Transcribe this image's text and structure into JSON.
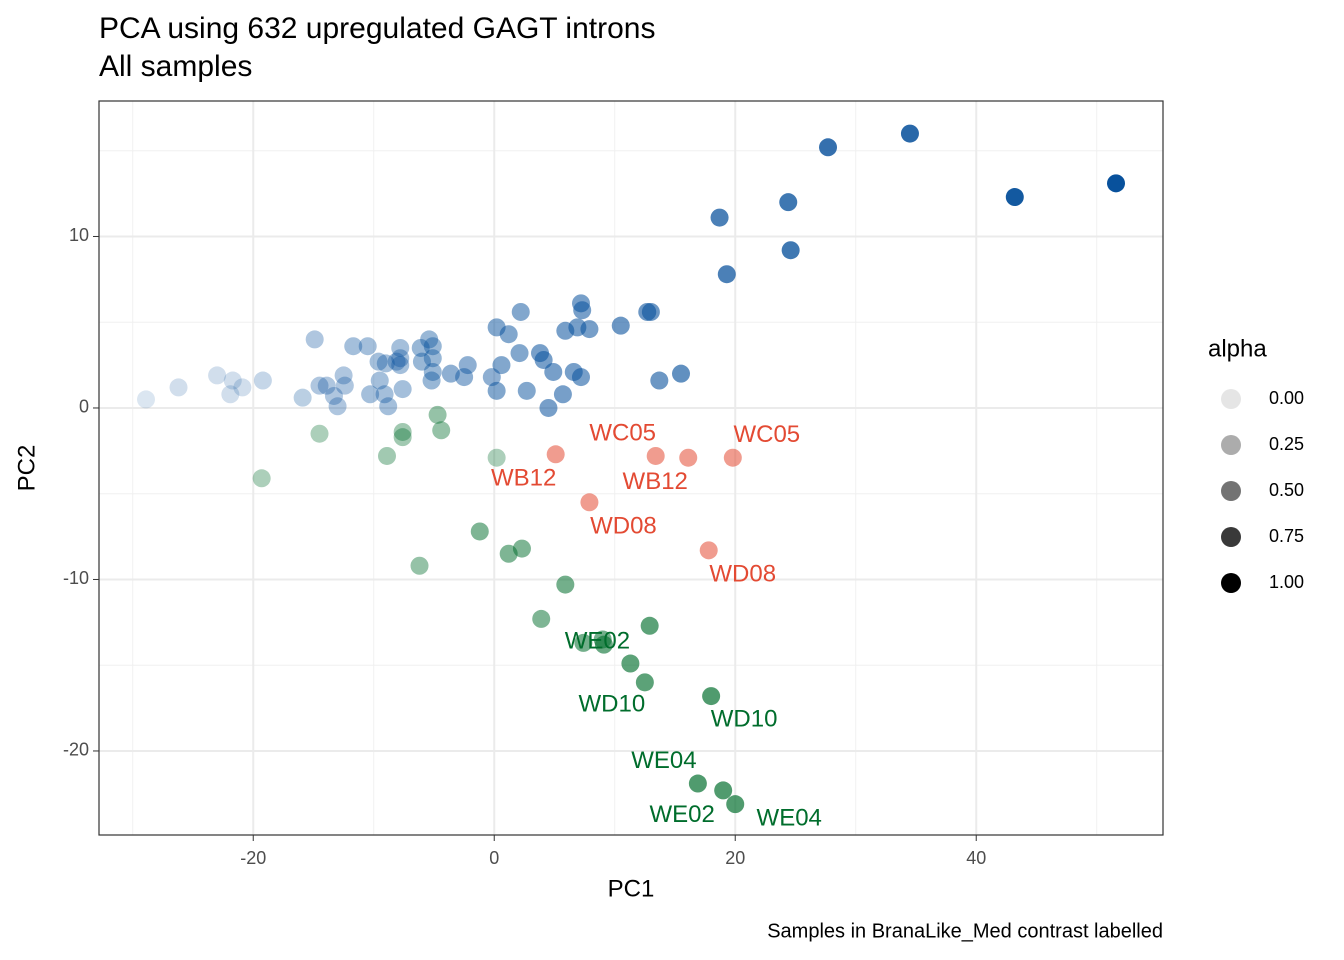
{
  "chart_data": {
    "type": "scatter",
    "title": "PCA using 632 upregulated GAGT introns",
    "subtitle": "All samples",
    "x_label": "PC1",
    "y_label": "PC2",
    "caption": "Samples in BranaLike_Med contrast labelled",
    "xlim": [
      -32.8,
      55.5
    ],
    "ylim": [
      -24.9,
      17.9
    ],
    "xticks": [
      -20,
      0,
      20,
      40
    ],
    "yticks": [
      -20,
      -10,
      0,
      10
    ],
    "x_minor_breaks": [
      -30,
      -10,
      10,
      30,
      50
    ],
    "y_minor_breaks": [
      -15,
      -5,
      5,
      15
    ],
    "grid": true,
    "legend": {
      "title": "alpha",
      "position": "right",
      "color": "#000000",
      "values": [
        {
          "value": 0,
          "label": "0.00"
        },
        {
          "value": 0.25,
          "label": "0.25"
        },
        {
          "value": 0.5,
          "label": "0.50"
        },
        {
          "value": 0.75,
          "label": "0.75"
        },
        {
          "value": 1,
          "label": "1.00"
        }
      ]
    },
    "series": [
      {
        "color": "#08519c",
        "x": [
          -28.9,
          -26.2,
          -23.0,
          -21.9,
          -21.7,
          -20.9,
          -19.2,
          -15.9,
          -14.9,
          -14.5,
          -13.9,
          -13.3,
          -13.0,
          -12.5,
          -12.4,
          -11.7,
          -10.5,
          -10.3,
          -9.6,
          -9.5,
          -9.0,
          -8.8,
          -9.1,
          -8.1,
          -7.8,
          -7.8,
          -7.8,
          -7.6,
          -6.1,
          -6.0,
          -5.4,
          -5.1,
          -5.1,
          -5.1,
          -5.2,
          -3.6,
          -2.5,
          -2.2,
          -0.2,
          0.2,
          0.2,
          0.6,
          1.2,
          2.1,
          2.2,
          2.7,
          3.8,
          4.1,
          4.9,
          4.5,
          5.7,
          5.9,
          6.6,
          6.9,
          7.2,
          7.3,
          7.2,
          7.9,
          10.5,
          12.7,
          13.0,
          13.7,
          15.5,
          18.7,
          19.3,
          24.4,
          24.6,
          27.7,
          34.5,
          43.2,
          51.6
        ],
        "y": [
          0.5,
          1.2,
          1.9,
          0.8,
          1.6,
          1.2,
          1.6,
          0.6,
          4.0,
          1.3,
          1.3,
          0.7,
          0.1,
          1.9,
          1.3,
          3.6,
          3.6,
          0.8,
          2.7,
          1.6,
          2.6,
          0.1,
          0.8,
          2.7,
          3.5,
          2.9,
          2.5,
          1.1,
          3.5,
          2.7,
          4.0,
          2.1,
          3.6,
          2.9,
          1.6,
          2.0,
          1.8,
          2.5,
          1.8,
          4.7,
          1.0,
          2.5,
          4.3,
          3.2,
          5.6,
          1.0,
          3.2,
          2.8,
          2.1,
          0.0,
          0.8,
          4.5,
          2.1,
          4.7,
          6.1,
          5.7,
          1.8,
          4.6,
          4.8,
          5.6,
          5.6,
          1.6,
          2.0,
          11.1,
          7.8,
          12.0,
          9.2,
          15.2,
          16.0,
          12.3,
          13.1
        ],
        "alpha": [
          0.05,
          0.1,
          0.1,
          0.1,
          0.1,
          0.1,
          0.15,
          0.2,
          0.25,
          0.25,
          0.25,
          0.25,
          0.25,
          0.25,
          0.25,
          0.3,
          0.3,
          0.3,
          0.3,
          0.3,
          0.3,
          0.3,
          0.3,
          0.3,
          0.3,
          0.3,
          0.3,
          0.3,
          0.35,
          0.35,
          0.35,
          0.35,
          0.35,
          0.35,
          0.35,
          0.4,
          0.4,
          0.4,
          0.4,
          0.45,
          0.45,
          0.45,
          0.45,
          0.45,
          0.45,
          0.45,
          0.5,
          0.5,
          0.5,
          0.5,
          0.5,
          0.5,
          0.5,
          0.5,
          0.5,
          0.5,
          0.5,
          0.5,
          0.55,
          0.55,
          0.55,
          0.55,
          0.6,
          0.7,
          0.7,
          0.75,
          0.75,
          0.8,
          0.85,
          0.95,
          1
        ]
      },
      {
        "color": "#e34a33",
        "x": [
          5.1,
          13.4,
          16.1,
          19.8,
          7.9,
          17.8
        ],
        "y": [
          -2.7,
          -2.8,
          -2.9,
          -2.9,
          -5.5,
          -8.3
        ],
        "alpha": [
          0.5,
          0.5,
          0.5,
          0.5,
          0.5,
          0.5
        ],
        "labels": [
          "WB12",
          "WC05",
          "WB12",
          "WC05",
          "WD08",
          "WD08"
        ]
      },
      {
        "color": "#006d2c",
        "x": [
          -19.3,
          -14.5,
          -8.9,
          -7.6,
          -7.6,
          -4.7,
          -4.4,
          -6.2,
          0.2,
          -1.2,
          1.2,
          2.3,
          5.9,
          3.9,
          7.4,
          9.0,
          9.1,
          12.9,
          11.3,
          12.5,
          18.0,
          16.9,
          19.0,
          20.0
        ],
        "y": [
          -4.1,
          -1.5,
          -2.8,
          -1.4,
          -1.7,
          -0.4,
          -1.3,
          -9.2,
          -2.9,
          -7.2,
          -8.5,
          -8.2,
          -10.3,
          -12.3,
          -13.7,
          -13.5,
          -13.8,
          -12.7,
          -14.9,
          -16.0,
          -16.8,
          -21.9,
          -22.3,
          -23.1
        ],
        "alpha": [
          0.25,
          0.25,
          0.3,
          0.3,
          0.3,
          0.35,
          0.35,
          0.35,
          0.25,
          0.45,
          0.45,
          0.45,
          0.5,
          0.45,
          0.5,
          0.5,
          0.55,
          0.6,
          0.6,
          0.6,
          0.65,
          0.65,
          0.65,
          0.65
        ],
        "labels": [
          null,
          null,
          null,
          null,
          null,
          null,
          null,
          null,
          null,
          null,
          null,
          null,
          null,
          null,
          "WE02",
          null,
          null,
          null,
          null,
          "WD10",
          "WD10",
          "WE04",
          "WE02",
          "WE04"
        ]
      }
    ]
  }
}
